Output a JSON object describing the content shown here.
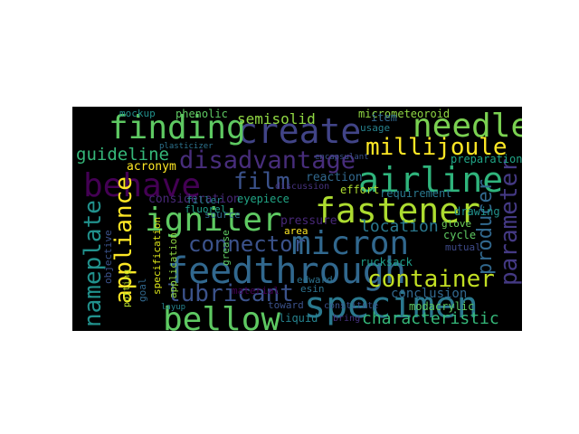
{
  "words": [
    {
      "text": "create",
      "color": "#414487"
    },
    {
      "text": "finding",
      "color": "#5ec962"
    },
    {
      "text": "needle",
      "color": "#7ad151"
    },
    {
      "text": "millijoule",
      "color": "#fde725"
    },
    {
      "text": "behave",
      "color": "#440154"
    },
    {
      "text": "airline",
      "color": "#2fb47c"
    },
    {
      "text": "disadvantage",
      "color": "#472d7b"
    },
    {
      "text": "film",
      "color": "#3b528b"
    },
    {
      "text": "fastener",
      "color": "#addc30"
    },
    {
      "text": "igniter",
      "color": "#5ec962"
    },
    {
      "text": "micron",
      "color": "#31688e"
    },
    {
      "text": "connector",
      "color": "#3b528b"
    },
    {
      "text": "feedthrough",
      "color": "#31688e"
    },
    {
      "text": "appliance",
      "color": "#fde725"
    },
    {
      "text": "nameplate",
      "color": "#21918c"
    },
    {
      "text": "lubricant",
      "color": "#3b528b"
    },
    {
      "text": "bellow",
      "color": "#5ec962"
    },
    {
      "text": "specimen",
      "color": "#2a788e"
    },
    {
      "text": "container",
      "color": "#c2df23"
    },
    {
      "text": "parameter",
      "color": "#443983"
    },
    {
      "text": "producer",
      "color": "#31688e"
    },
    {
      "text": "characteristic",
      "color": "#35b779"
    },
    {
      "text": "guideline",
      "color": "#35b779"
    },
    {
      "text": "semisolid",
      "color": "#90d743"
    },
    {
      "text": "location",
      "color": "#2a788e"
    },
    {
      "text": "conclusion",
      "color": "#31688e"
    },
    {
      "text": "acronym",
      "color": "#fde725"
    },
    {
      "text": "consideration",
      "color": "#482878"
    },
    {
      "text": "requirement",
      "color": "#2a788e"
    },
    {
      "text": "micrometeoroid",
      "color": "#90d743"
    },
    {
      "text": "phenolic",
      "color": "#5ec962"
    },
    {
      "text": "mockup",
      "color": "#21918c"
    },
    {
      "text": "eyepiece",
      "color": "#21a585"
    },
    {
      "text": "rucksack",
      "color": "#1f9e89"
    },
    {
      "text": "modacrylic",
      "color": "#5ec962"
    },
    {
      "text": "pressure",
      "color": "#482878"
    },
    {
      "text": "reaction",
      "color": "#31688e"
    },
    {
      "text": "effort",
      "color": "#addc30"
    },
    {
      "text": "drawing",
      "color": "#21918c"
    },
    {
      "text": "mutual",
      "color": "#3e4a89"
    },
    {
      "text": "cycle",
      "color": "#5ec962"
    },
    {
      "text": "preparation",
      "color": "#20a486"
    },
    {
      "text": "item",
      "color": "#31688e"
    },
    {
      "text": "usage",
      "color": "#26828e"
    },
    {
      "text": "fluorel",
      "color": "#1f9e89"
    },
    {
      "text": "filler",
      "color": "#26828e"
    },
    {
      "text": "source",
      "color": "#31688e"
    },
    {
      "text": "specification",
      "color": "#d8e219"
    },
    {
      "text": "goal",
      "color": "#31688e"
    },
    {
      "text": "application",
      "color": "#90d743"
    },
    {
      "text": "objective",
      "color": "#3b528b"
    },
    {
      "text": "grease",
      "color": "#5ec962"
    },
    {
      "text": "area",
      "color": "#fde725"
    },
    {
      "text": "glove",
      "color": "#6ece58"
    },
    {
      "text": "liquid",
      "color": "#26828e"
    },
    {
      "text": "toward",
      "color": "#3b528b"
    },
    {
      "text": "edward",
      "color": "#2c728e"
    },
    {
      "text": "esin",
      "color": "#2c728e"
    },
    {
      "text": "material",
      "color": "#440154"
    },
    {
      "text": "bring",
      "color": "#46327e"
    },
    {
      "text": "constitute",
      "color": "#3b528b"
    },
    {
      "text": "discussion",
      "color": "#46327e"
    },
    {
      "text": "encapsulant",
      "color": "#3b528b"
    },
    {
      "text": "plasticizer",
      "color": "#2c728e"
    },
    {
      "text": "potting",
      "color": "#b5de2b"
    },
    {
      "text": "layup",
      "color": "#26828e"
    }
  ]
}
